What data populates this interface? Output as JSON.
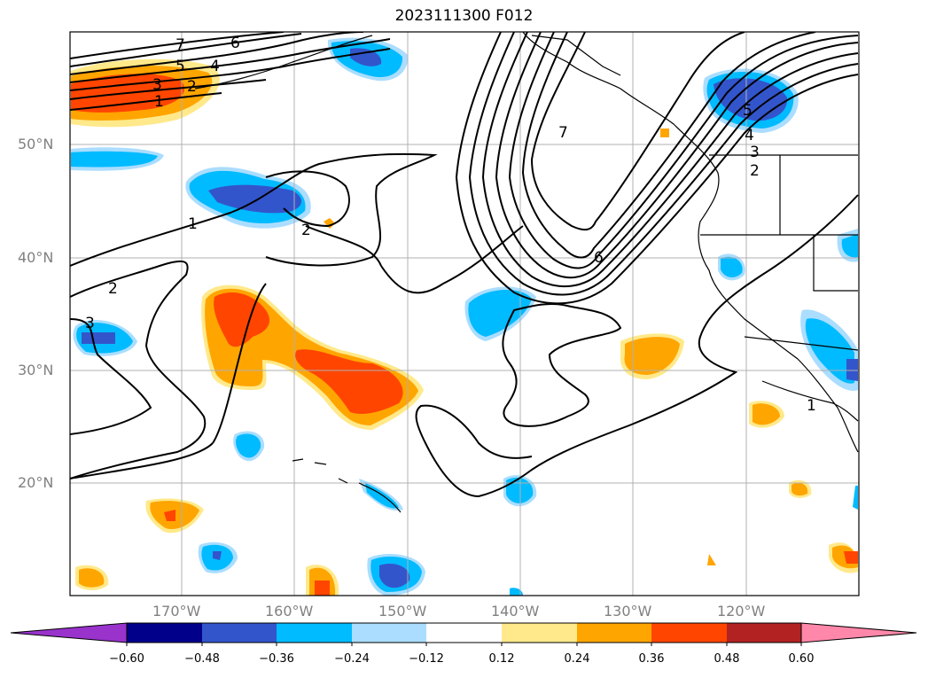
{
  "title": "2023111300 F012",
  "lat_labels": [
    "50°N",
    "40°N",
    "30°N",
    "20°N"
  ],
  "lon_labels": [
    "170°W",
    "160°W",
    "150°W",
    "140°W",
    "130°W",
    "120°W"
  ],
  "contour_labels": [
    "7",
    "6",
    "5",
    "4",
    "3",
    "2",
    "1",
    "1",
    "2",
    "2",
    "3",
    "6",
    "7",
    "5",
    "4",
    "3",
    "2",
    "1"
  ],
  "colorbar": {
    "ticks": [
      "−0.60",
      "−0.48",
      "−0.36",
      "−0.24",
      "−0.12",
      "0.12",
      "0.24",
      "0.36",
      "0.48",
      "0.60"
    ],
    "colors": [
      "#9933cc",
      "#00008b",
      "#3355cc",
      "#00bbff",
      "#aaddff",
      "#ffffff",
      "#ffe98a",
      "#ffa500",
      "#ff4500",
      "#b22222",
      "#ff88aa"
    ]
  }
}
